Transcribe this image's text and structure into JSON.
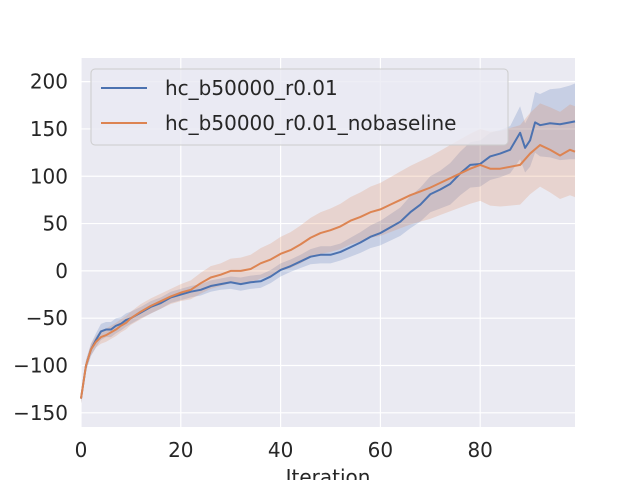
{
  "chart_data": {
    "type": "line",
    "title": "",
    "xlabel": "Iteration",
    "ylabel": "",
    "xlim": [
      0,
      99
    ],
    "ylim": [
      -165,
      225
    ],
    "xticks": [
      0,
      20,
      40,
      60,
      80
    ],
    "yticks": [
      -150,
      -100,
      -50,
      0,
      50,
      100,
      150,
      200
    ],
    "grid": true,
    "legend_position": "top-left",
    "colors": {
      "background": "#eaeaf2",
      "grid": "#ffffff",
      "text": "#262626"
    },
    "series": [
      {
        "name": "hc_b50000_r0.01",
        "color": "#4c72b0",
        "x": [
          0,
          1,
          2,
          3,
          4,
          5,
          6,
          7,
          8,
          9,
          10,
          12,
          14,
          16,
          18,
          20,
          22,
          24,
          26,
          28,
          30,
          32,
          34,
          36,
          38,
          40,
          42,
          44,
          46,
          48,
          50,
          52,
          54,
          56,
          58,
          60,
          62,
          64,
          66,
          68,
          70,
          72,
          74,
          76,
          78,
          80,
          82,
          84,
          86,
          88,
          89,
          90,
          91,
          92,
          94,
          96,
          98,
          99
        ],
        "mean": [
          -135,
          -100,
          -83,
          -73,
          -64,
          -62,
          -62,
          -58,
          -56,
          -52,
          -50,
          -44,
          -38,
          -34,
          -28,
          -25,
          -22,
          -20,
          -16,
          -14,
          -12,
          -14,
          -12,
          -11,
          -6,
          1,
          5,
          10,
          15,
          17,
          17,
          20,
          25,
          30,
          36,
          40,
          46,
          52,
          62,
          70,
          81,
          86,
          92,
          103,
          112,
          113,
          121,
          124,
          128,
          146,
          130,
          138,
          157,
          154,
          156,
          155,
          157,
          158
        ],
        "lower": [
          -140,
          -106,
          -90,
          -81,
          -73,
          -70,
          -70,
          -66,
          -63,
          -59,
          -56,
          -50,
          -45,
          -40,
          -34,
          -31,
          -28,
          -26,
          -22,
          -20,
          -19,
          -21,
          -19,
          -18,
          -13,
          -6,
          -1,
          3,
          7,
          8,
          8,
          11,
          15,
          19,
          24,
          27,
          32,
          37,
          45,
          52,
          62,
          66,
          70,
          80,
          88,
          89,
          96,
          99,
          103,
          118,
          104,
          110,
          125,
          121,
          120,
          117,
          118,
          118
        ],
        "upper": [
          -130,
          -94,
          -77,
          -66,
          -56,
          -54,
          -54,
          -50,
          -49,
          -45,
          -43,
          -38,
          -32,
          -28,
          -22,
          -19,
          -16,
          -14,
          -10,
          -8,
          -6,
          -7,
          -5,
          -4,
          1,
          8,
          12,
          17,
          23,
          26,
          26,
          29,
          35,
          41,
          48,
          53,
          60,
          67,
          79,
          88,
          100,
          106,
          114,
          126,
          136,
          138,
          146,
          149,
          153,
          174,
          156,
          166,
          189,
          187,
          192,
          193,
          196,
          198
        ]
      },
      {
        "name": "hc_b50000_r0.01_nobaseline",
        "color": "#dd8452",
        "x": [
          0,
          1,
          2,
          3,
          4,
          5,
          6,
          7,
          8,
          9,
          10,
          12,
          14,
          16,
          18,
          20,
          22,
          24,
          26,
          28,
          30,
          32,
          34,
          36,
          38,
          40,
          42,
          44,
          46,
          48,
          50,
          52,
          54,
          56,
          58,
          60,
          62,
          64,
          66,
          68,
          70,
          72,
          74,
          76,
          78,
          80,
          82,
          84,
          86,
          88,
          90,
          92,
          94,
          96,
          98,
          99
        ],
        "mean": [
          -135,
          -100,
          -83,
          -75,
          -70,
          -68,
          -65,
          -62,
          -58,
          -55,
          -50,
          -43,
          -37,
          -32,
          -27,
          -23,
          -20,
          -13,
          -7,
          -4,
          0,
          0,
          2,
          8,
          12,
          18,
          22,
          28,
          35,
          40,
          43,
          47,
          53,
          57,
          62,
          65,
          70,
          75,
          80,
          84,
          88,
          93,
          98,
          103,
          108,
          112,
          108,
          108,
          110,
          112,
          124,
          133,
          128,
          122,
          128,
          126
        ],
        "lower": [
          -140,
          -105,
          -89,
          -81,
          -77,
          -75,
          -72,
          -69,
          -65,
          -62,
          -57,
          -51,
          -45,
          -40,
          -35,
          -32,
          -30,
          -24,
          -19,
          -16,
          -13,
          -14,
          -13,
          -8,
          -5,
          0,
          3,
          8,
          14,
          18,
          20,
          23,
          28,
          31,
          35,
          37,
          41,
          45,
          49,
          52,
          55,
          59,
          63,
          67,
          71,
          74,
          69,
          68,
          69,
          70,
          81,
          89,
          83,
          76,
          80,
          78
        ],
        "upper": [
          -130,
          -95,
          -77,
          -69,
          -63,
          -61,
          -58,
          -55,
          -51,
          -48,
          -43,
          -35,
          -29,
          -24,
          -19,
          -14,
          -10,
          -2,
          5,
          8,
          13,
          14,
          17,
          24,
          29,
          36,
          41,
          48,
          56,
          62,
          66,
          71,
          78,
          83,
          89,
          93,
          99,
          105,
          111,
          116,
          121,
          127,
          133,
          139,
          145,
          150,
          147,
          148,
          151,
          154,
          167,
          177,
          173,
          168,
          176,
          174
        ]
      }
    ]
  }
}
